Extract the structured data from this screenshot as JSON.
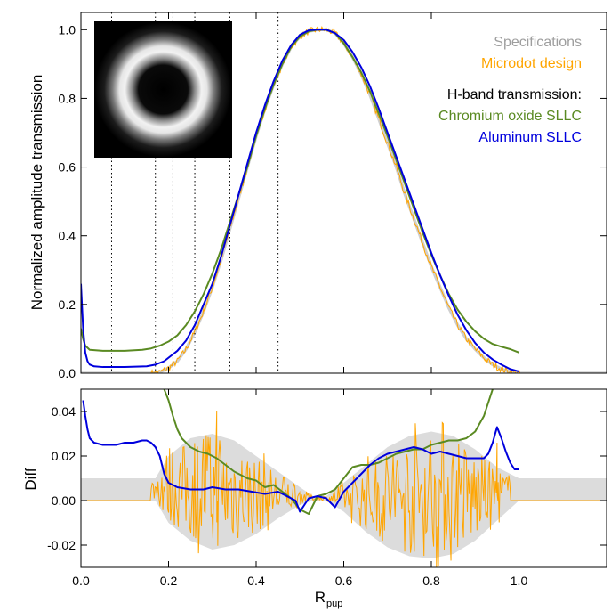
{
  "chart_data": [
    {
      "type": "line",
      "panel": "top",
      "ylabel": "Normalized amplitude transmission",
      "xlim": [
        0,
        1.2
      ],
      "ylim": [
        0,
        1.05
      ],
      "yticks": [
        0.0,
        0.2,
        0.4,
        0.6,
        0.8,
        1.0
      ],
      "ytick_labels": [
        "0.0",
        "0.2",
        "0.4",
        "0.6",
        "0.8",
        "1.0"
      ],
      "vlines": [
        0.07,
        0.17,
        0.21,
        0.26,
        0.34,
        0.45
      ],
      "inset": "annular-pupil-mask-image",
      "legend_placement": "top-right",
      "legend": {
        "specs": "Specifications",
        "microdot": "Microdot design",
        "heading": "H-band transmission:",
        "chromium": "Chromium oxide SLLC",
        "aluminum": "Aluminum SLLC"
      },
      "colors": {
        "specs": "#9e9e9e",
        "microdot": "#ffa500",
        "chromium": "#5a8a22",
        "aluminum": "#0000dd"
      },
      "series": [
        {
          "name": "Specifications",
          "x": [
            0.0,
            0.16,
            0.18,
            0.2,
            0.22,
            0.24,
            0.26,
            0.28,
            0.3,
            0.32,
            0.34,
            0.36,
            0.38,
            0.4,
            0.42,
            0.44,
            0.46,
            0.48,
            0.5,
            0.52,
            0.54,
            0.56,
            0.58,
            0.6,
            0.62,
            0.64,
            0.66,
            0.68,
            0.7,
            0.72,
            0.74,
            0.76,
            0.78,
            0.8,
            0.82,
            0.84,
            0.86,
            0.88,
            0.9,
            0.92,
            0.94,
            0.96,
            0.98,
            1.0,
            1.2
          ],
          "y": [
            0.0,
            0.0,
            0.003,
            0.015,
            0.035,
            0.07,
            0.12,
            0.18,
            0.25,
            0.33,
            0.42,
            0.51,
            0.6,
            0.69,
            0.77,
            0.84,
            0.9,
            0.95,
            0.98,
            0.995,
            1.0,
            1.0,
            0.99,
            0.96,
            0.92,
            0.87,
            0.81,
            0.74,
            0.67,
            0.6,
            0.52,
            0.45,
            0.38,
            0.31,
            0.25,
            0.19,
            0.14,
            0.1,
            0.07,
            0.045,
            0.025,
            0.012,
            0.004,
            0.0,
            0.0
          ]
        },
        {
          "name": "Chromium oxide SLLC",
          "x": [
            0.0,
            0.005,
            0.01,
            0.02,
            0.05,
            0.1,
            0.14,
            0.16,
            0.18,
            0.2,
            0.22,
            0.24,
            0.26,
            0.28,
            0.3,
            0.32,
            0.34,
            0.36,
            0.38,
            0.4,
            0.42,
            0.44,
            0.46,
            0.48,
            0.5,
            0.52,
            0.54,
            0.56,
            0.58,
            0.6,
            0.62,
            0.64,
            0.66,
            0.68,
            0.7,
            0.72,
            0.74,
            0.76,
            0.78,
            0.8,
            0.82,
            0.84,
            0.86,
            0.88,
            0.9,
            0.92,
            0.94,
            0.96,
            0.98,
            1.0
          ],
          "y": [
            0.13,
            0.1,
            0.08,
            0.068,
            0.065,
            0.065,
            0.068,
            0.072,
            0.08,
            0.092,
            0.11,
            0.14,
            0.18,
            0.23,
            0.29,
            0.36,
            0.44,
            0.52,
            0.6,
            0.69,
            0.77,
            0.84,
            0.9,
            0.95,
            0.98,
            0.995,
            1.0,
            1.0,
            0.99,
            0.96,
            0.92,
            0.875,
            0.82,
            0.755,
            0.69,
            0.62,
            0.55,
            0.48,
            0.41,
            0.345,
            0.285,
            0.23,
            0.185,
            0.15,
            0.122,
            0.1,
            0.085,
            0.077,
            0.07,
            0.06
          ]
        },
        {
          "name": "Aluminum SLLC",
          "x": [
            0.0,
            0.005,
            0.01,
            0.015,
            0.02,
            0.03,
            0.05,
            0.1,
            0.15,
            0.17,
            0.19,
            0.2,
            0.22,
            0.24,
            0.26,
            0.28,
            0.3,
            0.32,
            0.34,
            0.36,
            0.38,
            0.4,
            0.42,
            0.44,
            0.46,
            0.48,
            0.5,
            0.52,
            0.54,
            0.56,
            0.58,
            0.6,
            0.62,
            0.64,
            0.66,
            0.68,
            0.7,
            0.72,
            0.74,
            0.76,
            0.78,
            0.8,
            0.82,
            0.84,
            0.86,
            0.88,
            0.9,
            0.92,
            0.94,
            0.96,
            0.98,
            1.0
          ],
          "y": [
            0.26,
            0.13,
            0.06,
            0.035,
            0.025,
            0.02,
            0.018,
            0.018,
            0.02,
            0.025,
            0.035,
            0.045,
            0.065,
            0.095,
            0.14,
            0.2,
            0.26,
            0.34,
            0.43,
            0.52,
            0.61,
            0.7,
            0.78,
            0.85,
            0.91,
            0.955,
            0.985,
            0.998,
            1.0,
            1.0,
            0.99,
            0.97,
            0.935,
            0.89,
            0.835,
            0.77,
            0.7,
            0.63,
            0.56,
            0.49,
            0.42,
            0.35,
            0.285,
            0.225,
            0.17,
            0.125,
            0.088,
            0.06,
            0.04,
            0.025,
            0.012,
            0.005
          ]
        }
      ]
    },
    {
      "type": "line",
      "panel": "bottom",
      "ylabel": "Diff",
      "xlabel": "R",
      "xlabel_sub": "pup",
      "xlim": [
        0,
        1.2
      ],
      "ylim": [
        -0.03,
        0.05
      ],
      "xticks": [
        0.0,
        0.2,
        0.4,
        0.6,
        0.8,
        1.0
      ],
      "xtick_labels": [
        "0.0",
        "0.2",
        "0.4",
        "0.6",
        "0.8",
        "1.0"
      ],
      "yticks": [
        -0.02,
        0.0,
        0.02,
        0.04
      ],
      "ytick_labels": [
        "-0.02",
        "0.00",
        "0.02",
        "0.04"
      ],
      "envelope": {
        "name": "Specifications",
        "x": [
          0.0,
          0.17,
          0.2,
          0.25,
          0.3,
          0.35,
          0.4,
          0.45,
          0.5,
          0.53,
          0.56,
          0.6,
          0.65,
          0.7,
          0.75,
          0.8,
          0.85,
          0.9,
          0.95,
          1.0,
          1.2
        ],
        "upper": [
          0.01,
          0.01,
          0.02,
          0.028,
          0.03,
          0.027,
          0.02,
          0.013,
          0.006,
          0.002,
          0.002,
          0.008,
          0.016,
          0.024,
          0.029,
          0.031,
          0.029,
          0.023,
          0.015,
          0.01,
          0.01
        ],
        "lower": [
          0.0,
          0.0,
          -0.01,
          -0.018,
          -0.022,
          -0.02,
          -0.015,
          -0.008,
          -0.002,
          0.0,
          0.0,
          -0.005,
          -0.014,
          -0.021,
          -0.025,
          -0.026,
          -0.024,
          -0.018,
          -0.009,
          0.0,
          0.0
        ]
      },
      "microdot": {
        "name": "Microdot design",
        "x_start": 0.16,
        "x_end": 0.98,
        "zero_regions": [
          [
            0.0,
            0.16
          ],
          [
            0.98,
            1.2
          ]
        ],
        "peak_markers": [
          [
            0.31,
            0.04
          ],
          [
            0.95,
            0.026
          ]
        ]
      },
      "series": [
        {
          "name": "Chromium oxide SLLC",
          "x": [
            0.19,
            0.2,
            0.21,
            0.22,
            0.23,
            0.25,
            0.27,
            0.29,
            0.31,
            0.33,
            0.35,
            0.38,
            0.4,
            0.42,
            0.44,
            0.46,
            0.48,
            0.5,
            0.52,
            0.54,
            0.56,
            0.58,
            0.6,
            0.62,
            0.64,
            0.66,
            0.68,
            0.7,
            0.72,
            0.74,
            0.76,
            0.78,
            0.8,
            0.82,
            0.84,
            0.86,
            0.88,
            0.9,
            0.92,
            0.94
          ],
          "y": [
            0.05,
            0.045,
            0.038,
            0.032,
            0.028,
            0.024,
            0.022,
            0.021,
            0.019,
            0.016,
            0.013,
            0.01,
            0.009,
            0.006,
            0.007,
            0.004,
            0.001,
            -0.004,
            -0.006,
            0.002,
            0.003,
            0.005,
            0.01,
            0.015,
            0.016,
            0.016,
            0.017,
            0.019,
            0.021,
            0.022,
            0.023,
            0.023,
            0.025,
            0.026,
            0.027,
            0.027,
            0.028,
            0.031,
            0.038,
            0.05
          ]
        },
        {
          "name": "Aluminum SLLC",
          "x": [
            0.005,
            0.01,
            0.015,
            0.02,
            0.03,
            0.05,
            0.08,
            0.1,
            0.12,
            0.14,
            0.15,
            0.16,
            0.17,
            0.18,
            0.19,
            0.2,
            0.22,
            0.25,
            0.28,
            0.3,
            0.33,
            0.36,
            0.39,
            0.42,
            0.45,
            0.47,
            0.49,
            0.5,
            0.51,
            0.52,
            0.54,
            0.56,
            0.58,
            0.6,
            0.62,
            0.64,
            0.66,
            0.68,
            0.7,
            0.72,
            0.74,
            0.76,
            0.78,
            0.8,
            0.82,
            0.84,
            0.86,
            0.88,
            0.9,
            0.92,
            0.93,
            0.94,
            0.95,
            0.96,
            0.97,
            0.98,
            0.99,
            1.0
          ],
          "y": [
            0.045,
            0.038,
            0.032,
            0.028,
            0.026,
            0.025,
            0.025,
            0.026,
            0.026,
            0.027,
            0.027,
            0.026,
            0.024,
            0.02,
            0.012,
            0.008,
            0.006,
            0.005,
            0.005,
            0.006,
            0.005,
            0.005,
            0.004,
            0.003,
            0.004,
            0.002,
            0.0,
            -0.005,
            -0.002,
            0.001,
            0.002,
            0.001,
            -0.003,
            0.004,
            0.008,
            0.012,
            0.016,
            0.019,
            0.021,
            0.022,
            0.023,
            0.024,
            0.023,
            0.021,
            0.022,
            0.021,
            0.02,
            0.019,
            0.019,
            0.019,
            0.021,
            0.026,
            0.033,
            0.028,
            0.022,
            0.017,
            0.014,
            0.014
          ]
        }
      ]
    }
  ]
}
